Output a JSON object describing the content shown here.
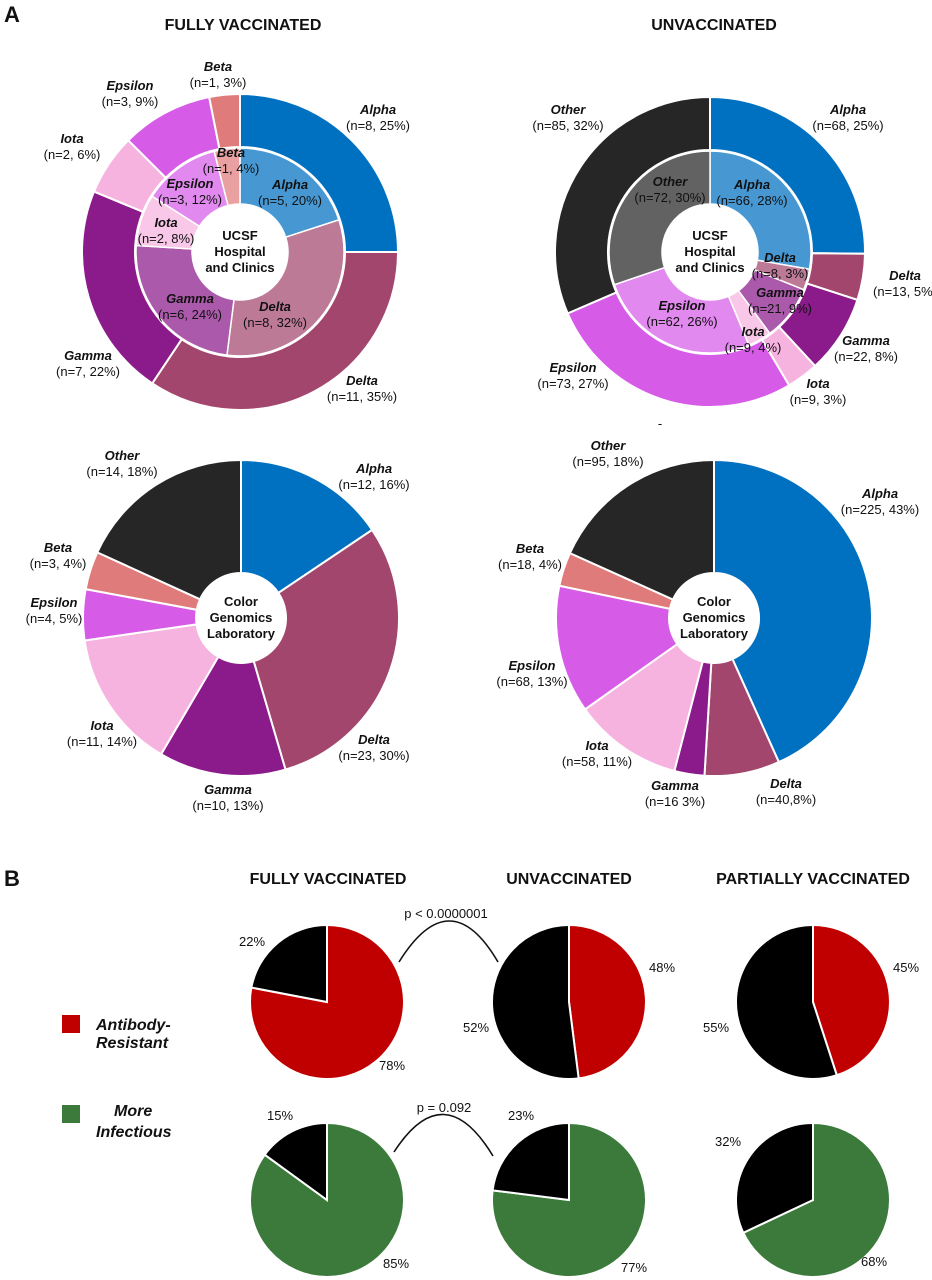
{
  "panel_a": {
    "label": "A",
    "col_titles": [
      "FULLY VACCINATED",
      "UNVACCINATED"
    ],
    "stray_mark": "-"
  },
  "panel_b": {
    "label": "B",
    "col_titles": [
      "FULLY VACCINATED",
      "UNVACCINATED",
      "PARTIALLY VACCINATED"
    ],
    "legend": [
      {
        "lines": [
          "Antibody-",
          "Resistant"
        ],
        "color": "#c00000"
      },
      {
        "lines": [
          "More",
          "Infectious"
        ],
        "color": "#3b7a3b"
      }
    ],
    "p_values": [
      "p < 0.0000001",
      "p = 0.092"
    ]
  },
  "colors": {
    "Alpha": "#0070c0",
    "Beta": "#e07b7b",
    "Gamma": "#8b1a8b",
    "Delta": "#a3466e",
    "Epsilon": "#d65ce8",
    "Iota": "#f7b3e0",
    "Other": "#262626",
    "Antibody-Resistant": "#c00000",
    "More Infectious": "#3b7a3b",
    "Black": "#000000"
  },
  "chart_data": [
    {
      "type": "pie",
      "panel": "A",
      "group": "FULLY VACCINATED",
      "center_label": [
        "UCSF",
        "Hospital",
        "and Clinics"
      ],
      "rings": [
        {
          "ring": "outer",
          "slices": [
            {
              "label": "Alpha",
              "n": 8,
              "pct": 25,
              "text": "(n=8, 25%)"
            },
            {
              "label": "Delta",
              "n": 11,
              "pct": 35,
              "text": "(n=11, 35%)"
            },
            {
              "label": "Gamma",
              "n": 7,
              "pct": 22,
              "text": "(n=7, 22%)"
            },
            {
              "label": "Iota",
              "n": 2,
              "pct": 6,
              "text": "(n=2, 6%)"
            },
            {
              "label": "Epsilon",
              "n": 3,
              "pct": 9,
              "text": "(n=3, 9%)"
            },
            {
              "label": "Beta",
              "n": 1,
              "pct": 3,
              "text": "(n=1, 3%)"
            }
          ]
        },
        {
          "ring": "inner",
          "slices": [
            {
              "label": "Alpha",
              "n": 5,
              "pct": 20,
              "text": "(n=5, 20%)"
            },
            {
              "label": "Delta",
              "n": 8,
              "pct": 32,
              "text": "(n=8, 32%)"
            },
            {
              "label": "Gamma",
              "n": 6,
              "pct": 24,
              "text": "(n=6, 24%)"
            },
            {
              "label": "Iota",
              "n": 2,
              "pct": 8,
              "text": "(n=2, 8%)"
            },
            {
              "label": "Epsilon",
              "n": 3,
              "pct": 12,
              "text": "(n=3, 12%)"
            },
            {
              "label": "Beta",
              "n": 1,
              "pct": 4,
              "text": "(n=1, 4%)"
            }
          ]
        }
      ]
    },
    {
      "type": "pie",
      "panel": "A",
      "group": "UNVACCINATED",
      "center_label": [
        "UCSF",
        "Hospital",
        "and Clinics"
      ],
      "rings": [
        {
          "ring": "outer",
          "slices": [
            {
              "label": "Alpha",
              "n": 68,
              "pct": 25,
              "text": "(n=68, 25%)"
            },
            {
              "label": "Delta",
              "n": 13,
              "pct": 5,
              "text": "(n=13, 5%)"
            },
            {
              "label": "Gamma",
              "n": 22,
              "pct": 8,
              "text": "(n=22, 8%)"
            },
            {
              "label": "Iota",
              "n": 9,
              "pct": 3,
              "text": "(n=9, 3%)"
            },
            {
              "label": "Epsilon",
              "n": 73,
              "pct": 27,
              "text": "(n=73, 27%)"
            },
            {
              "label": "Other",
              "n": 85,
              "pct": 32,
              "text": "(n=85, 32%)"
            }
          ]
        },
        {
          "ring": "inner",
          "slices": [
            {
              "label": "Alpha",
              "n": 66,
              "pct": 28,
              "text": "(n=66, 28%)"
            },
            {
              "label": "Delta",
              "n": 8,
              "pct": 3,
              "text": "(n=8, 3%)"
            },
            {
              "label": "Gamma",
              "n": 21,
              "pct": 9,
              "text": "(n=21, 9%)"
            },
            {
              "label": "Iota",
              "n": 9,
              "pct": 4,
              "text": "(n=9, 4%)"
            },
            {
              "label": "Epsilon",
              "n": 62,
              "pct": 26,
              "text": "(n=62, 26%)"
            },
            {
              "label": "Other",
              "n": 72,
              "pct": 30,
              "text": "(n=72, 30%)"
            }
          ]
        }
      ]
    },
    {
      "type": "pie",
      "panel": "A",
      "group": "FULLY VACCINATED",
      "center_label": [
        "Color",
        "Genomics",
        "Laboratory"
      ],
      "slices": [
        {
          "label": "Alpha",
          "n": 12,
          "pct": 16,
          "text": "(n=12, 16%)"
        },
        {
          "label": "Delta",
          "n": 23,
          "pct": 30,
          "text": "(n=23, 30%)"
        },
        {
          "label": "Gamma",
          "n": 10,
          "pct": 13,
          "text": "(n=10, 13%)"
        },
        {
          "label": "Iota",
          "n": 11,
          "pct": 14,
          "text": "(n=11, 14%)"
        },
        {
          "label": "Epsilon",
          "n": 4,
          "pct": 5,
          "text": "(n=4, 5%)"
        },
        {
          "label": "Beta",
          "n": 3,
          "pct": 4,
          "text": "(n=3, 4%)"
        },
        {
          "label": "Other",
          "n": 14,
          "pct": 18,
          "text": "(n=14, 18%)"
        }
      ]
    },
    {
      "type": "pie",
      "panel": "A",
      "group": "UNVACCINATED",
      "center_label": [
        "Color",
        "Genomics",
        "Laboratory"
      ],
      "slices": [
        {
          "label": "Alpha",
          "n": 225,
          "pct": 43,
          "text": "(n=225, 43%)"
        },
        {
          "label": "Delta",
          "n": 40,
          "pct": 8,
          "text": "(n=40,8%)"
        },
        {
          "label": "Gamma",
          "n": 16,
          "pct": 3,
          "text": "(n=16 3%)"
        },
        {
          "label": "Iota",
          "n": 58,
          "pct": 11,
          "text": "(n=58, 11%)"
        },
        {
          "label": "Epsilon",
          "n": 68,
          "pct": 13,
          "text": "(n=68, 13%)"
        },
        {
          "label": "Beta",
          "n": 18,
          "pct": 4,
          "text": "(n=18, 4%)"
        },
        {
          "label": "Other",
          "n": 95,
          "pct": 18,
          "text": "(n=95, 18%)"
        }
      ]
    },
    {
      "type": "pie",
      "panel": "B",
      "row": "Antibody-Resistant",
      "group": "FULLY VACCINATED",
      "slices": [
        {
          "label": "Antibody-Resistant",
          "pct": 78,
          "text": "78%"
        },
        {
          "label": "Other",
          "pct": 22,
          "text": "22%"
        }
      ]
    },
    {
      "type": "pie",
      "panel": "B",
      "row": "Antibody-Resistant",
      "group": "UNVACCINATED",
      "slices": [
        {
          "label": "Antibody-Resistant",
          "pct": 48,
          "text": "48%"
        },
        {
          "label": "Other",
          "pct": 52,
          "text": "52%"
        }
      ]
    },
    {
      "type": "pie",
      "panel": "B",
      "row": "Antibody-Resistant",
      "group": "PARTIALLY VACCINATED",
      "slices": [
        {
          "label": "Antibody-Resistant",
          "pct": 45,
          "text": "45%"
        },
        {
          "label": "Other",
          "pct": 55,
          "text": "55%"
        }
      ]
    },
    {
      "type": "pie",
      "panel": "B",
      "row": "More Infectious",
      "group": "FULLY VACCINATED",
      "slices": [
        {
          "label": "More Infectious",
          "pct": 85,
          "text": "85%"
        },
        {
          "label": "Other",
          "pct": 15,
          "text": "15%"
        }
      ]
    },
    {
      "type": "pie",
      "panel": "B",
      "row": "More Infectious",
      "group": "UNVACCINATED",
      "slices": [
        {
          "label": "More Infectious",
          "pct": 77,
          "text": "77%"
        },
        {
          "label": "Other",
          "pct": 23,
          "text": "23%"
        }
      ]
    },
    {
      "type": "pie",
      "panel": "B",
      "row": "More Infectious",
      "group": "PARTIALLY VACCINATED",
      "slices": [
        {
          "label": "More Infectious",
          "pct": 68,
          "text": "68%"
        },
        {
          "label": "Other",
          "pct": 32,
          "text": "32%"
        }
      ]
    }
  ]
}
